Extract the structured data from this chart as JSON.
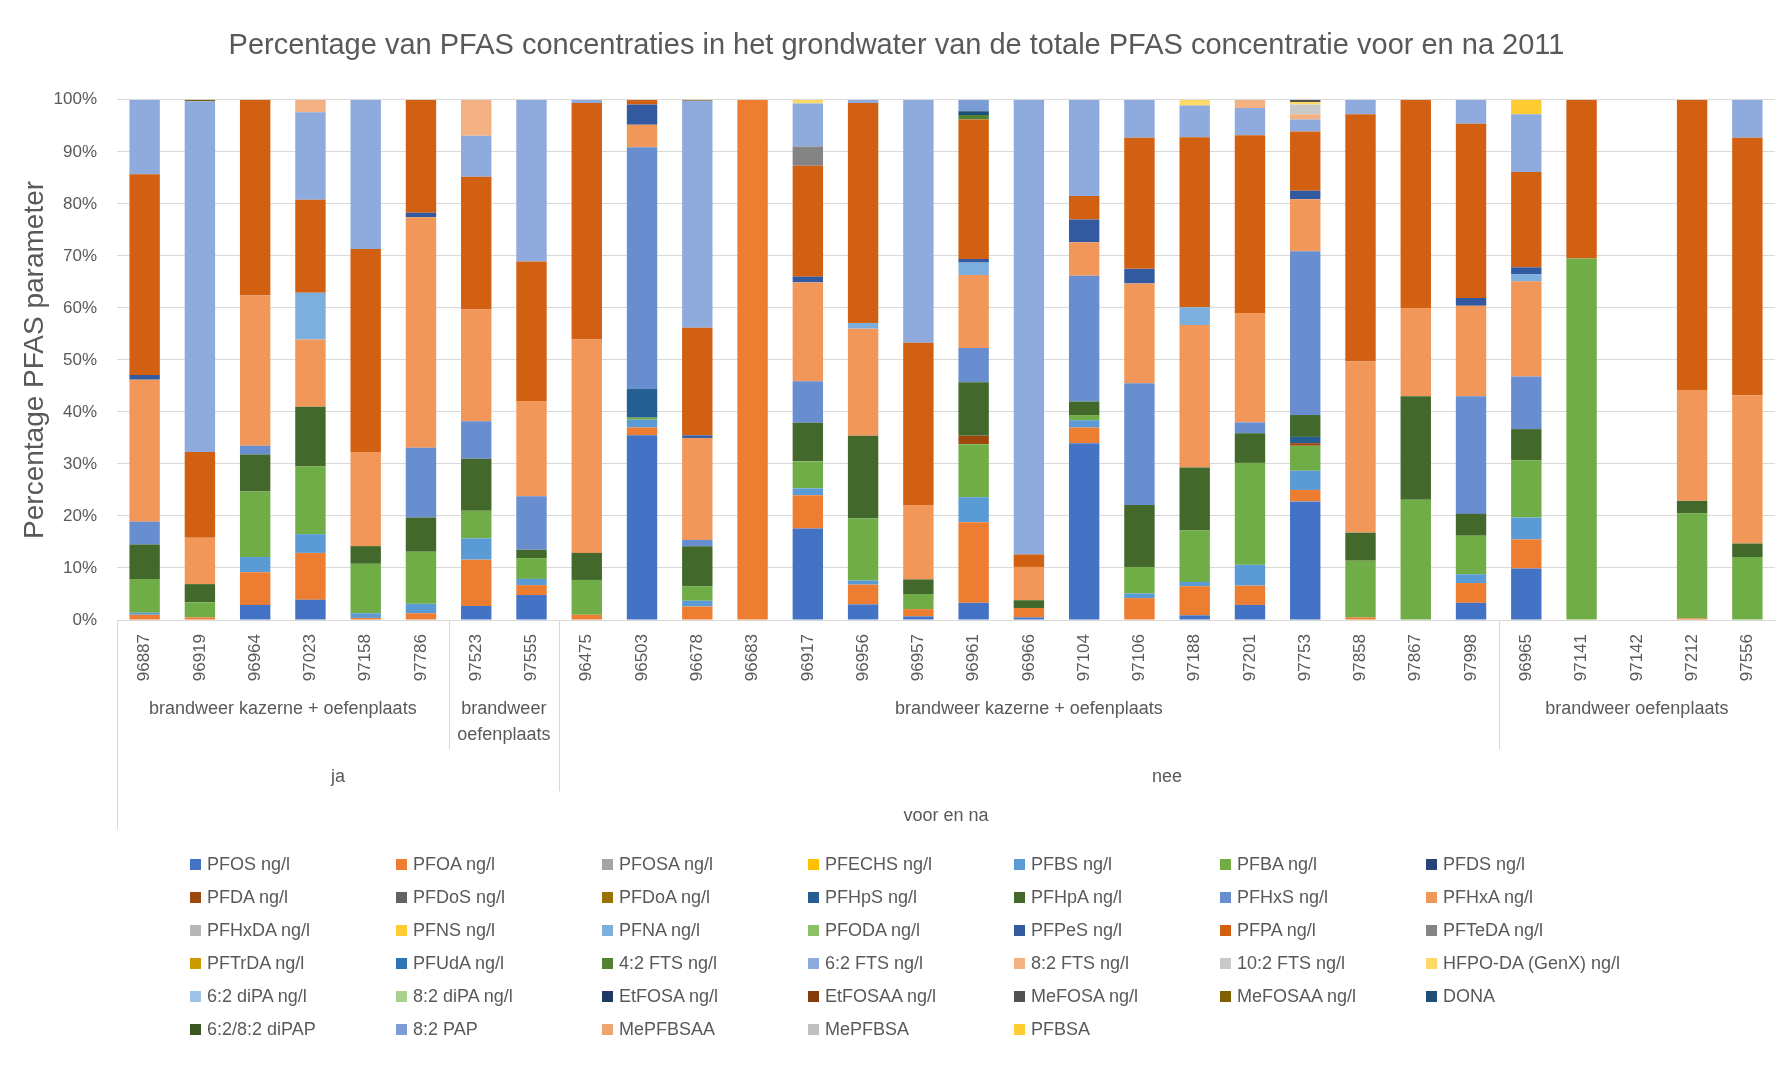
{
  "chart_data": {
    "type": "bar",
    "stacked": true,
    "title": "Percentage van PFAS concentraties in het grondwater van de totale PFAS concentratie voor en na 2011",
    "ylabel": "Percentage PFAS parameter",
    "categories": [
      "96887",
      "96919",
      "96964",
      "97023",
      "97158",
      "97786",
      "97523",
      "97555",
      "96475",
      "96503",
      "96678",
      "96683",
      "96917",
      "96956",
      "96957",
      "96961",
      "96966",
      "97104",
      "97106",
      "97188",
      "97201",
      "97753",
      "97858",
      "97867",
      "97998",
      "96965",
      "97141",
      "97142",
      "97212",
      "97556"
    ],
    "ylim": [
      0,
      100
    ],
    "yticks": [
      {
        "value": 0,
        "label": "0%"
      },
      {
        "value": 10,
        "label": "10%"
      },
      {
        "value": 20,
        "label": "20%"
      },
      {
        "value": 30,
        "label": "30%"
      },
      {
        "value": 40,
        "label": "40%"
      },
      {
        "value": 50,
        "label": "50%"
      },
      {
        "value": 60,
        "label": "60%"
      },
      {
        "value": 70,
        "label": "70%"
      },
      {
        "value": 80,
        "label": "80%"
      },
      {
        "value": 90,
        "label": "90%"
      },
      {
        "value": 100,
        "label": "100%"
      }
    ],
    "grid": "y",
    "legend": "bottom",
    "annotations": [
      "brandweer kazerne + oefenplaats",
      "brandweer oefenplaats",
      "brandweer kazerne + oefenplaats",
      "brandweer oefenplaats",
      "ja",
      "nee",
      "voor en na"
    ],
    "series": [
      {
        "name": "PFOS ng/l",
        "color": "#4472c4",
        "values": [
          null,
          null,
          2.9,
          3.9,
          null,
          null,
          2.7,
          4.8,
          null,
          35.5,
          null,
          null,
          17.6,
          3.0,
          0.7,
          3.3,
          0.5,
          34.0,
          null,
          0.9,
          2.9,
          22.8,
          null,
          null,
          3.3,
          9.9,
          null,
          null,
          null,
          null
        ]
      },
      {
        "name": "PFOA ng/l",
        "color": "#ed7d31",
        "values": [
          1.0,
          0.5,
          6.3,
          9.0,
          0.4,
          1.3,
          8.9,
          1.9,
          1.0,
          1.5,
          2.6,
          100,
          6.4,
          3.8,
          1.4,
          15.5,
          1.8,
          3.0,
          4.2,
          5.6,
          3.7,
          2.2,
          0.5,
          null,
          3.8,
          5.6,
          null,
          null,
          0.3,
          null
        ]
      },
      {
        "name": "PFOSA ng/l",
        "color": "#a5a5a5",
        "values": [
          null,
          null,
          null,
          null,
          null,
          null,
          null,
          null,
          null,
          null,
          null,
          null,
          null,
          null,
          null,
          null,
          null,
          null,
          null,
          null,
          null,
          null,
          null,
          null,
          null,
          null,
          null,
          null,
          null,
          null
        ]
      },
      {
        "name": "PFECHS ng/l",
        "color": "#ffc000",
        "values": [
          null,
          null,
          null,
          null,
          null,
          null,
          null,
          null,
          null,
          null,
          null,
          null,
          null,
          null,
          null,
          null,
          null,
          null,
          null,
          null,
          null,
          null,
          null,
          null,
          null,
          null,
          null,
          null,
          null,
          null
        ]
      },
      {
        "name": "PFBS ng/l",
        "color": "#5b9bd5",
        "values": [
          0.4,
          null,
          2.9,
          3.6,
          0.9,
          1.8,
          4.1,
          1.2,
          null,
          1.5,
          1.1,
          null,
          1.3,
          0.8,
          null,
          4.8,
          null,
          1.4,
          0.9,
          0.8,
          4.0,
          3.7,
          null,
          null,
          1.7,
          4.2,
          null,
          null,
          null,
          null
        ]
      },
      {
        "name": "PFBA ng/l",
        "color": "#70ad47",
        "values": [
          6.5,
          2.9,
          12.6,
          13.0,
          9.5,
          10.0,
          5.3,
          4.0,
          6.7,
          0.4,
          2.8,
          null,
          5.2,
          11.9,
          2.9,
          10.2,
          null,
          1.0,
          5.1,
          9.9,
          19.6,
          4.8,
          10.9,
          23.1,
          7.4,
          11.0,
          69.5,
          null,
          20.2,
          12.1
        ]
      },
      {
        "name": "PFDS ng/l",
        "color": "#264478",
        "values": [
          null,
          null,
          null,
          null,
          null,
          null,
          null,
          null,
          null,
          null,
          null,
          null,
          null,
          null,
          null,
          null,
          null,
          null,
          null,
          null,
          null,
          null,
          null,
          null,
          null,
          null,
          null,
          null,
          null,
          null
        ]
      },
      {
        "name": "PFDA ng/l",
        "color": "#9e480e",
        "values": [
          null,
          null,
          null,
          null,
          null,
          null,
          null,
          null,
          null,
          null,
          null,
          null,
          null,
          null,
          null,
          1.6,
          null,
          null,
          null,
          null,
          null,
          0.5,
          null,
          null,
          null,
          null,
          null,
          null,
          null,
          null
        ]
      },
      {
        "name": "PFDoS ng/l",
        "color": "#636363",
        "values": [
          null,
          null,
          null,
          null,
          null,
          null,
          null,
          null,
          null,
          null,
          null,
          null,
          null,
          null,
          null,
          null,
          null,
          null,
          null,
          null,
          null,
          null,
          null,
          null,
          null,
          null,
          null,
          null,
          null,
          null
        ]
      },
      {
        "name": "PFDoA ng/l",
        "color": "#997300",
        "values": [
          null,
          null,
          null,
          null,
          null,
          null,
          null,
          null,
          null,
          null,
          null,
          null,
          null,
          null,
          null,
          null,
          null,
          null,
          null,
          null,
          null,
          null,
          null,
          null,
          null,
          null,
          null,
          null,
          null,
          null
        ]
      },
      {
        "name": "PFHpS ng/l",
        "color": "#255e91",
        "values": [
          null,
          null,
          null,
          null,
          null,
          null,
          null,
          null,
          null,
          5.5,
          null,
          null,
          null,
          null,
          null,
          null,
          null,
          null,
          null,
          null,
          null,
          1.2,
          null,
          null,
          null,
          null,
          null,
          null,
          null,
          null
        ]
      },
      {
        "name": "PFHpA ng/l",
        "color": "#43682b",
        "values": [
          6.6,
          3.5,
          7.1,
          11.5,
          3.4,
          6.6,
          10.0,
          1.6,
          5.2,
          null,
          7.7,
          null,
          7.4,
          15.9,
          2.8,
          10.3,
          1.5,
          2.6,
          11.9,
          12.1,
          5.7,
          4.2,
          5.4,
          19.9,
          4.2,
          6.0,
          null,
          null,
          2.4,
          2.6
        ]
      },
      {
        "name": "PFHxS ng/l",
        "color": "#698ed0",
        "values": [
          4.4,
          null,
          1.7,
          null,
          null,
          13.4,
          7.2,
          10.3,
          null,
          46.5,
          1.2,
          null,
          8.0,
          null,
          null,
          6.6,
          null,
          24.2,
          23.4,
          null,
          2.1,
          31.5,
          null,
          null,
          22.6,
          10.1,
          null,
          null,
          null,
          null
        ]
      },
      {
        "name": "PFHxA ng/l",
        "color": "#f1975a",
        "values": [
          27.3,
          8.9,
          28.9,
          12.9,
          18.1,
          44.3,
          21.5,
          18.3,
          41.0,
          4.3,
          19.6,
          null,
          19.0,
          20.6,
          14.3,
          14.0,
          6.4,
          6.4,
          19.2,
          27.4,
          21.0,
          10.0,
          32.9,
          17.0,
          17.4,
          18.3,
          null,
          null,
          21.3,
          28.5
        ]
      },
      {
        "name": "PFHxDA ng/l",
        "color": "#b7b7b7",
        "values": [
          null,
          null,
          null,
          null,
          null,
          null,
          null,
          null,
          null,
          null,
          null,
          null,
          null,
          null,
          null,
          null,
          null,
          null,
          null,
          null,
          null,
          null,
          null,
          null,
          null,
          null,
          null,
          null,
          null,
          null
        ]
      },
      {
        "name": "PFNS ng/l",
        "color": "#ffcd33",
        "values": [
          null,
          null,
          null,
          null,
          null,
          null,
          null,
          null,
          null,
          null,
          null,
          null,
          null,
          null,
          null,
          null,
          null,
          null,
          null,
          null,
          null,
          null,
          null,
          null,
          null,
          null,
          null,
          null,
          null,
          null
        ]
      },
      {
        "name": "PFNA ng/l",
        "color": "#7cafdd",
        "values": [
          null,
          null,
          null,
          9.0,
          null,
          null,
          null,
          null,
          null,
          null,
          null,
          null,
          null,
          1.1,
          null,
          2.4,
          null,
          null,
          null,
          3.4,
          null,
          null,
          null,
          null,
          null,
          1.4,
          null,
          null,
          null,
          null
        ]
      },
      {
        "name": "PFODA ng/l",
        "color": "#8cc168",
        "values": [
          null,
          null,
          null,
          null,
          null,
          null,
          null,
          null,
          null,
          null,
          null,
          null,
          null,
          null,
          null,
          null,
          null,
          null,
          null,
          null,
          null,
          null,
          null,
          null,
          null,
          null,
          null,
          null,
          null,
          null
        ]
      },
      {
        "name": "PFPeS ng/l",
        "color": "#335aa1",
        "values": [
          0.9,
          null,
          null,
          null,
          null,
          0.9,
          null,
          null,
          null,
          3.9,
          0.5,
          null,
          1.1,
          null,
          null,
          0.7,
          null,
          4.4,
          2.8,
          null,
          null,
          1.6,
          null,
          null,
          1.5,
          1.3,
          null,
          null,
          null,
          null
        ]
      },
      {
        "name": "PFPA ng/l",
        "color": "#d26012",
        "values": [
          38.6,
          16.5,
          37.6,
          17.9,
          39.0,
          21.7,
          25.5,
          26.8,
          45.5,
          0.9,
          20.7,
          null,
          21.3,
          42.3,
          31.2,
          26.8,
          2.4,
          4.5,
          25.2,
          32.7,
          34.2,
          11.4,
          47.5,
          40.0,
          33.5,
          18.3,
          30.5,
          null,
          55.8,
          49.5
        ]
      },
      {
        "name": "PFTeDA ng/l",
        "color": "#848484",
        "values": [
          null,
          null,
          null,
          null,
          null,
          null,
          null,
          null,
          null,
          null,
          null,
          null,
          3.7,
          null,
          null,
          null,
          null,
          null,
          null,
          null,
          null,
          null,
          null,
          null,
          null,
          null,
          null,
          null,
          null,
          null
        ]
      },
      {
        "name": "PFTrDA ng/l",
        "color": "#cc9a00",
        "values": [
          null,
          null,
          null,
          null,
          null,
          null,
          null,
          null,
          null,
          null,
          null,
          null,
          null,
          null,
          null,
          null,
          null,
          null,
          null,
          null,
          null,
          null,
          null,
          null,
          null,
          null,
          null,
          null,
          null,
          null
        ]
      },
      {
        "name": "PFUdA ng/l",
        "color": "#2e75b6",
        "values": [
          null,
          null,
          null,
          null,
          null,
          null,
          null,
          null,
          null,
          null,
          null,
          null,
          null,
          null,
          null,
          null,
          null,
          null,
          null,
          null,
          null,
          null,
          null,
          null,
          null,
          null,
          null,
          null,
          null,
          null
        ]
      },
      {
        "name": "4:2 FTS ng/l",
        "color": "#548235",
        "values": [
          null,
          null,
          null,
          null,
          null,
          null,
          null,
          null,
          null,
          null,
          null,
          null,
          null,
          null,
          null,
          0.9,
          null,
          null,
          null,
          null,
          null,
          null,
          null,
          null,
          null,
          null,
          null,
          null,
          null,
          null
        ]
      },
      {
        "name": "6:2 FTS ng/l",
        "color": "#8faadc",
        "values": [
          14.3,
          67.4,
          null,
          16.8,
          28.7,
          null,
          7.9,
          31.1,
          0.6,
          null,
          43.6,
          null,
          8.3,
          0.6,
          46.7,
          null,
          87.4,
          18.5,
          7.3,
          6.1,
          5.2,
          2.3,
          2.8,
          null,
          4.6,
          11.1,
          null,
          null,
          null,
          7.3
        ]
      },
      {
        "name": "8:2 FTS ng/l",
        "color": "#f4b183",
        "values": [
          null,
          null,
          null,
          2.4,
          null,
          null,
          6.9,
          null,
          null,
          null,
          null,
          null,
          null,
          null,
          null,
          null,
          null,
          null,
          null,
          null,
          1.6,
          1.0,
          null,
          null,
          null,
          null,
          null,
          null,
          null,
          null
        ]
      },
      {
        "name": "10:2 FTS ng/l",
        "color": "#c9c9c9",
        "values": [
          null,
          null,
          null,
          null,
          null,
          null,
          null,
          null,
          null,
          null,
          null,
          null,
          null,
          null,
          null,
          null,
          null,
          null,
          null,
          null,
          null,
          1.9,
          null,
          null,
          null,
          null,
          null,
          null,
          null,
          null
        ]
      },
      {
        "name": "HFPO-DA (GenX) ng/l",
        "color": "#ffd966",
        "values": [
          null,
          null,
          null,
          null,
          null,
          null,
          null,
          null,
          null,
          null,
          null,
          null,
          0.7,
          null,
          null,
          null,
          null,
          null,
          null,
          1.1,
          null,
          0.5,
          null,
          null,
          null,
          null,
          null,
          null,
          null,
          null
        ]
      },
      {
        "name": "6:2 diPA ng/l",
        "color": "#9dc3e6",
        "values": [
          null,
          null,
          null,
          null,
          null,
          null,
          null,
          null,
          null,
          null,
          null,
          null,
          null,
          null,
          null,
          null,
          null,
          null,
          null,
          null,
          null,
          null,
          null,
          null,
          null,
          null,
          null,
          null,
          null,
          null
        ]
      },
      {
        "name": "8:2 diPA ng/l",
        "color": "#a9d18e",
        "values": [
          null,
          null,
          null,
          null,
          null,
          null,
          null,
          null,
          null,
          null,
          null,
          null,
          null,
          null,
          null,
          null,
          null,
          null,
          null,
          null,
          null,
          null,
          null,
          null,
          null,
          null,
          null,
          null,
          null,
          null
        ]
      },
      {
        "name": "EtFOSA ng/l",
        "color": "#203864",
        "values": [
          null,
          null,
          null,
          null,
          null,
          null,
          null,
          null,
          null,
          null,
          null,
          null,
          null,
          null,
          null,
          null,
          null,
          null,
          null,
          null,
          null,
          null,
          null,
          null,
          null,
          null,
          null,
          null,
          null,
          null
        ]
      },
      {
        "name": "EtFOSAA ng/l",
        "color": "#843c0c",
        "values": [
          null,
          null,
          null,
          null,
          null,
          null,
          null,
          null,
          null,
          null,
          null,
          null,
          null,
          null,
          null,
          null,
          null,
          null,
          null,
          null,
          null,
          null,
          null,
          null,
          null,
          null,
          null,
          null,
          null,
          null
        ]
      },
      {
        "name": "MeFOSA ng/l",
        "color": "#525252",
        "values": [
          null,
          null,
          null,
          null,
          null,
          null,
          null,
          null,
          null,
          null,
          null,
          null,
          null,
          null,
          null,
          null,
          null,
          null,
          null,
          null,
          null,
          0.4,
          null,
          null,
          null,
          null,
          null,
          null,
          null,
          null
        ]
      },
      {
        "name": "MeFOSAA ng/l",
        "color": "#7f6000",
        "values": [
          null,
          0.3,
          null,
          null,
          null,
          null,
          null,
          null,
          null,
          null,
          0.2,
          null,
          null,
          null,
          null,
          null,
          null,
          null,
          null,
          null,
          null,
          null,
          null,
          null,
          null,
          null,
          null,
          null,
          null,
          null
        ]
      },
      {
        "name": "DONA",
        "color": "#1f4e79",
        "values": [
          null,
          null,
          null,
          null,
          null,
          null,
          null,
          null,
          null,
          null,
          null,
          null,
          null,
          null,
          null,
          0.7,
          null,
          null,
          null,
          null,
          null,
          null,
          null,
          null,
          null,
          null,
          null,
          null,
          null,
          null
        ]
      },
      {
        "name": "6:2/8:2 diPAP",
        "color": "#385723",
        "values": [
          null,
          null,
          null,
          null,
          null,
          null,
          null,
          null,
          null,
          null,
          null,
          null,
          null,
          null,
          null,
          null,
          null,
          null,
          null,
          null,
          null,
          null,
          null,
          null,
          null,
          null,
          null,
          null,
          null,
          null
        ]
      },
      {
        "name": "8:2 PAP",
        "color": "#7c9cd6",
        "values": [
          null,
          null,
          null,
          null,
          null,
          null,
          null,
          null,
          null,
          null,
          null,
          null,
          null,
          null,
          null,
          2.2,
          null,
          null,
          null,
          null,
          null,
          null,
          null,
          null,
          null,
          null,
          null,
          null,
          null,
          null
        ]
      },
      {
        "name": "MePFBSAA",
        "color": "#eea46e",
        "values": [
          null,
          null,
          null,
          null,
          null,
          null,
          null,
          null,
          null,
          null,
          null,
          null,
          null,
          null,
          null,
          null,
          null,
          null,
          null,
          null,
          null,
          null,
          null,
          null,
          null,
          null,
          null,
          null,
          null,
          null
        ]
      },
      {
        "name": "MePFBSA",
        "color": "#bfbfbf",
        "values": [
          null,
          null,
          null,
          null,
          null,
          null,
          null,
          null,
          null,
          null,
          null,
          null,
          null,
          null,
          null,
          null,
          null,
          null,
          null,
          null,
          null,
          null,
          null,
          null,
          null,
          null,
          null,
          null,
          null,
          null
        ]
      },
      {
        "name": "PFBSA",
        "color": "#ffcc33",
        "values": [
          null,
          null,
          null,
          null,
          null,
          null,
          null,
          null,
          null,
          null,
          null,
          null,
          null,
          null,
          null,
          null,
          null,
          null,
          null,
          null,
          null,
          null,
          null,
          null,
          null,
          2.8,
          null,
          null,
          null,
          null
        ]
      }
    ]
  }
}
